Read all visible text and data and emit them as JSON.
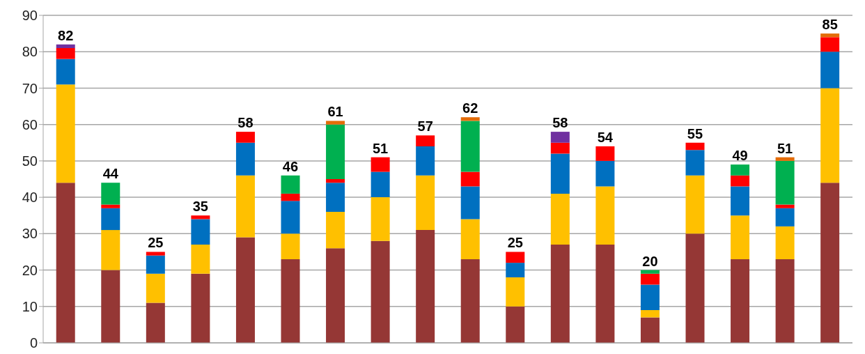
{
  "chart_data": {
    "type": "bar",
    "stacked": true,
    "categories": [
      null,
      null,
      null,
      null,
      null,
      null,
      null,
      null,
      null,
      null,
      null,
      null,
      null,
      null,
      null,
      null,
      null,
      null
    ],
    "series": [
      {
        "color": "#953735",
        "values": [
          44,
          20,
          11,
          19,
          29,
          23,
          26,
          28,
          31,
          23,
          10,
          27,
          27,
          7,
          30,
          23,
          23,
          44
        ]
      },
      {
        "color": "#ffc000",
        "values": [
          27,
          11,
          8,
          8,
          17,
          7,
          10,
          12,
          15,
          11,
          8,
          14,
          16,
          2,
          16,
          12,
          9,
          26
        ]
      },
      {
        "color": "#0070c0",
        "values": [
          7,
          6,
          5,
          7,
          9,
          9,
          8,
          7,
          8,
          9,
          4,
          11,
          7,
          7,
          7,
          8,
          5,
          10
        ]
      },
      {
        "color": "#ff0000",
        "values": [
          3,
          1,
          1,
          1,
          3,
          2,
          1,
          4,
          3,
          4,
          3,
          3,
          4,
          3,
          2,
          3,
          1,
          4
        ]
      },
      {
        "color": "#00b050",
        "values": [
          null,
          6,
          null,
          null,
          null,
          5,
          15,
          null,
          null,
          14,
          null,
          null,
          null,
          1,
          null,
          3,
          12,
          null
        ]
      },
      {
        "color": "#e36c09",
        "values": [
          null,
          null,
          null,
          null,
          null,
          null,
          1,
          null,
          null,
          1,
          null,
          null,
          null,
          null,
          null,
          null,
          1,
          1
        ]
      },
      {
        "color": "#7030a0",
        "values": [
          1,
          null,
          null,
          null,
          null,
          null,
          null,
          null,
          null,
          null,
          null,
          3,
          null,
          null,
          null,
          null,
          null,
          null
        ]
      }
    ],
    "totals": [
      "82",
      "44",
      "25",
      "35",
      "58",
      "46",
      "61",
      "51",
      "57",
      "62",
      "25",
      "58",
      "54",
      "20",
      "55",
      "49",
      "51",
      "85"
    ],
    "ylim": [
      0,
      90
    ],
    "yticks": [
      0,
      10,
      20,
      30,
      40,
      50,
      60,
      70,
      80,
      90
    ],
    "grid": "y",
    "legend": false,
    "tick_labels": "y"
  }
}
